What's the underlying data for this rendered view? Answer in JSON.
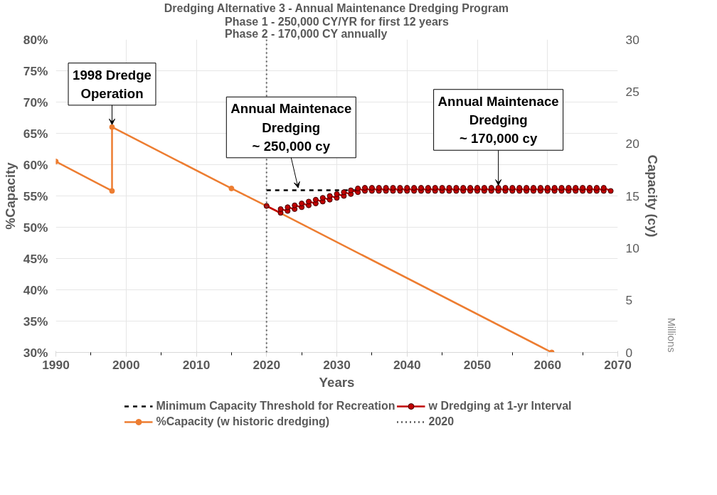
{
  "chart_data": {
    "type": "line",
    "title": "Dredging Alternative 3 - Annual Maintenance Dredging Program",
    "subtitle": "Phase 1 - 250,000 CY/YR for first 12 years\nPhase 2 - 170,000 CY annually",
    "xlabel": "Years",
    "ylabel": "%Capacity",
    "y2label": "Capacity (cy)",
    "xlim": [
      1990,
      2070
    ],
    "xticks": [
      1990,
      2000,
      2010,
      2020,
      2030,
      2040,
      2050,
      2060,
      2070
    ],
    "ylim": [
      30,
      80
    ],
    "yticks": [
      {
        "value": 30,
        "label": "30%"
      },
      {
        "value": 35,
        "label": "35%"
      },
      {
        "value": 40,
        "label": "40%"
      },
      {
        "value": 45,
        "label": "45%"
      },
      {
        "value": 50,
        "label": "50%"
      },
      {
        "value": 55,
        "label": "55%"
      },
      {
        "value": 60,
        "label": "60%"
      },
      {
        "value": 65,
        "label": "65%"
      },
      {
        "value": 70,
        "label": "70%"
      },
      {
        "value": 75,
        "label": "75%"
      },
      {
        "value": 80,
        "label": "80%"
      }
    ],
    "y2lim": [
      0,
      30
    ],
    "y2ticks": [
      0,
      5,
      10,
      15,
      20,
      25,
      30
    ],
    "grid": true,
    "legend": "bottom",
    "series": [
      {
        "name": "Minimum Capacity Threshold for Recreation",
        "color": "#000000",
        "line_style": "dashed",
        "marker": "none",
        "x": [
          2020,
          2033
        ],
        "values": [
          55.9,
          55.9
        ]
      },
      {
        "name": "%Capacity (w historic dredging)",
        "color": "#ed7d31",
        "line_style": "solid",
        "marker": "circle",
        "x": [
          1990,
          1998,
          1998,
          2015,
          2020,
          2060.6
        ],
        "values": [
          60.5,
          55.8,
          66,
          56.2,
          53.4,
          30
        ]
      },
      {
        "name": "w Dredging at 1-yr Interval",
        "color": "#c00000",
        "line_style": "solid",
        "marker": "circle",
        "x": [
          2020,
          2022,
          2022,
          2023,
          2023,
          2024,
          2024,
          2025,
          2025,
          2026,
          2026,
          2027,
          2027,
          2028,
          2028,
          2029,
          2029,
          2030,
          2030,
          2031,
          2031,
          2032,
          2032,
          2033,
          2033,
          2034,
          2034,
          2035,
          2035,
          2036,
          2036,
          2037,
          2037,
          2038,
          2038,
          2039,
          2039,
          2040,
          2040,
          2041,
          2041,
          2042,
          2042,
          2043,
          2043,
          2044,
          2044,
          2045,
          2045,
          2046,
          2046,
          2047,
          2047,
          2048,
          2048,
          2049,
          2049,
          2050,
          2050,
          2051,
          2051,
          2052,
          2052,
          2053,
          2053,
          2054,
          2054,
          2055,
          2055,
          2056,
          2056,
          2057,
          2057,
          2058,
          2058,
          2059,
          2059,
          2060,
          2060,
          2061,
          2061,
          2062,
          2062,
          2063,
          2063,
          2064,
          2064,
          2065,
          2065,
          2066,
          2066,
          2067,
          2067,
          2068,
          2068,
          2069
        ],
        "values": [
          53.4,
          52.3,
          52.9,
          52.6,
          53.2,
          52.9,
          53.5,
          53.2,
          53.8,
          53.5,
          54.1,
          53.8,
          54.4,
          54.1,
          54.7,
          54.4,
          55.0,
          54.7,
          55.3,
          55.0,
          55.6,
          55.3,
          55.9,
          55.6,
          56.2,
          55.8,
          56.3,
          55.8,
          56.3,
          55.8,
          56.3,
          55.8,
          56.3,
          55.8,
          56.3,
          55.8,
          56.3,
          55.8,
          56.3,
          55.8,
          56.3,
          55.8,
          56.3,
          55.8,
          56.3,
          55.8,
          56.3,
          55.8,
          56.3,
          55.8,
          56.3,
          55.8,
          56.3,
          55.8,
          56.3,
          55.8,
          56.3,
          55.8,
          56.3,
          55.8,
          56.3,
          55.8,
          56.3,
          55.8,
          56.3,
          55.8,
          56.3,
          55.8,
          56.3,
          55.8,
          56.3,
          55.8,
          56.3,
          55.8,
          56.3,
          55.8,
          56.3,
          55.8,
          56.3,
          55.8,
          56.3,
          55.8,
          56.3,
          55.8,
          56.3,
          55.8,
          56.3,
          55.8,
          56.3,
          55.8,
          56.3,
          55.8,
          56.3,
          55.8,
          56.3,
          55.8
        ]
      }
    ],
    "ref_lines": [
      {
        "axis": "x",
        "value": 2020,
        "label": "2020",
        "color": "#595959",
        "line_style": "dotted"
      }
    ],
    "annotations": [
      {
        "text": "1998 Dredge\nOperation",
        "x": 1998,
        "y": 66
      },
      {
        "text": "Annual Maintenace\nDredging\n~ 250,000 cy",
        "x": 2024.5,
        "y": 55.9
      },
      {
        "text": "Annual Maintenace\nDredging\n~ 170,000 cy",
        "x": 2053,
        "y": 56.3
      },
      "Millions"
    ]
  }
}
